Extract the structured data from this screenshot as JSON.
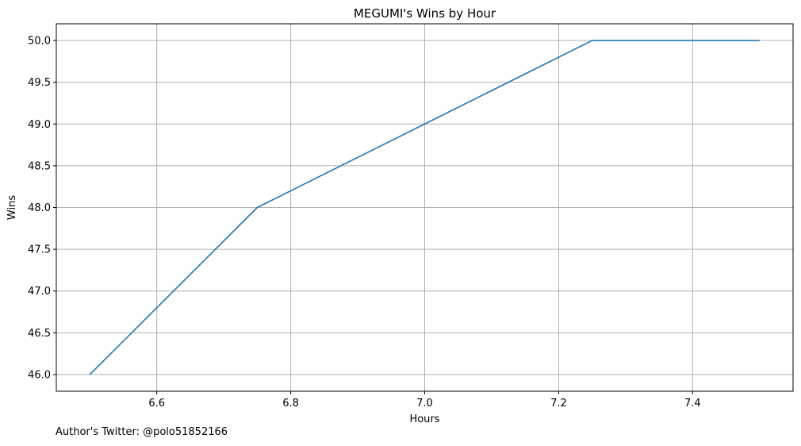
{
  "chart_data": {
    "type": "line",
    "title": "MEGUMI's Wins by Hour",
    "xlabel": "Hours",
    "ylabel": "Wins",
    "x": [
      6.5,
      6.75,
      7.0,
      7.25,
      7.5
    ],
    "series": [
      {
        "values": [
          46,
          48,
          49,
          50,
          50
        ],
        "color": "#1f77b4"
      }
    ],
    "xlim": [
      6.45,
      7.55
    ],
    "ylim": [
      45.8,
      50.2
    ],
    "xticks": [
      6.6,
      6.8,
      7.0,
      7.2,
      7.4
    ],
    "xtick_labels": [
      "6.6",
      "6.8",
      "7.0",
      "7.2",
      "7.4"
    ],
    "yticks": [
      46.0,
      46.5,
      47.0,
      47.5,
      48.0,
      48.5,
      49.0,
      49.5,
      50.0
    ],
    "ytick_labels": [
      "46.0",
      "46.5",
      "47.0",
      "47.5",
      "48.0",
      "48.5",
      "49.0",
      "49.5",
      "50.0"
    ],
    "grid": true,
    "grid_color": "#b0b0b0"
  },
  "footer": {
    "author_note": "Author's Twitter: @polo51852166"
  }
}
